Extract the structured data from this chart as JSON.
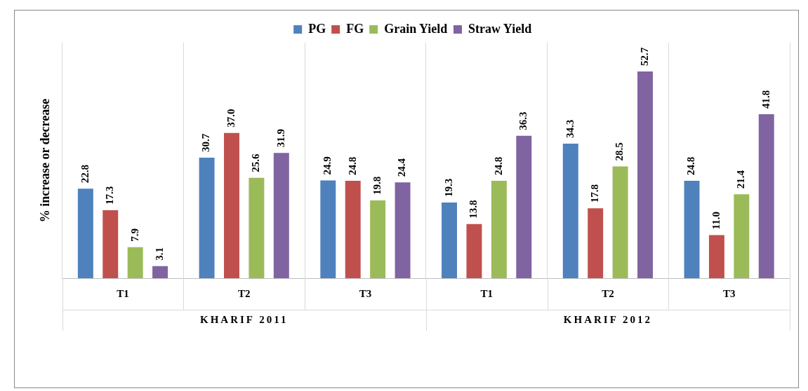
{
  "chart_data": {
    "type": "bar",
    "ylabel": "% increase or decrease",
    "categories": [
      "T1",
      "T2",
      "T3",
      "T1",
      "T2",
      "T3"
    ],
    "series": [
      {
        "name": "PG",
        "color": "#4f81bd",
        "values": [
          22.8,
          30.7,
          24.9,
          19.3,
          34.3,
          24.8
        ],
        "value_labels": [
          "22.8",
          "30.7",
          "24.9",
          "19.3",
          "34.3",
          "24.8"
        ]
      },
      {
        "name": "FG",
        "color": "#c0504d",
        "values": [
          17.3,
          37.0,
          24.8,
          13.8,
          17.8,
          11.0
        ],
        "value_labels": [
          "17.3",
          "37.0",
          "24.8",
          "13.8",
          "17.8",
          "11.0"
        ]
      },
      {
        "name": "Grain Yield",
        "color": "#9bbb59",
        "values": [
          7.9,
          25.6,
          19.8,
          24.8,
          28.5,
          21.4
        ],
        "value_labels": [
          "7.9",
          "25.6",
          "19.8",
          "24.8",
          "28.5",
          "21.4"
        ]
      },
      {
        "name": "Straw Yield",
        "color": "#8064a2",
        "values": [
          3.1,
          31.9,
          24.4,
          36.3,
          52.7,
          41.8
        ],
        "value_labels": [
          "3.1",
          "31.9",
          "24.4",
          "36.3",
          "52.7",
          "41.8"
        ]
      }
    ],
    "annotations": [
      "KHARIF 2011",
      "KHARIF 2012"
    ],
    "grid": "x",
    "legend": "top",
    "tick_labels": "x"
  }
}
